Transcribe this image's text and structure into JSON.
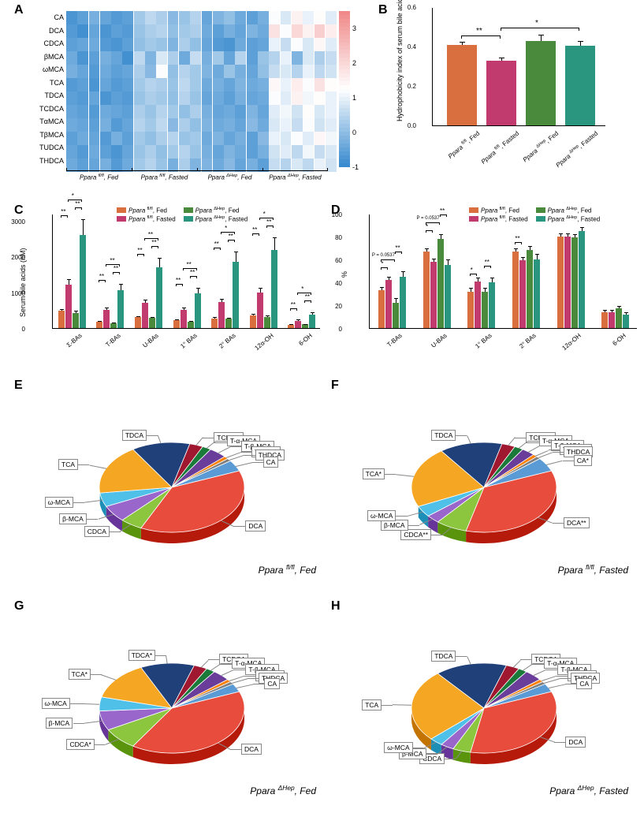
{
  "panels": {
    "A": "A",
    "B": "B",
    "C": "C",
    "D": "D",
    "E": "E",
    "F": "F",
    "G": "G",
    "H": "H"
  },
  "colors": {
    "group1": "#d96f3e",
    "group2": "#c13b6f",
    "group3": "#4a8a3d",
    "group4": "#2a9680",
    "heatmap_low": "#3a8bcf",
    "heatmap_mid": "#ffffff",
    "heatmap_high": "#f08a8a"
  },
  "groupLabels": {
    "g1": "Ppara fl/fl, Fed",
    "g2": "Ppara fl/fl, Fasted",
    "g3": "Ppara ΔHep, Fed",
    "g4": "Ppara ΔHep, Fasted"
  },
  "panelA": {
    "rows": [
      "CA",
      "DCA",
      "CDCA",
      "βMCA",
      "ωMCA",
      "TCA",
      "TDCA",
      "TCDCA",
      "TαMCA",
      "TβMCA",
      "TUDCA",
      "THDCA"
    ],
    "group_xlabels": [
      "Ppara fl/fl, Fed",
      "Ppara fl/fl, Fasted",
      "Ppara ΔHep, Fed",
      "Ppara ΔHep, Fasted"
    ],
    "colorbar_ticks": [
      3.0,
      2.0,
      1.0,
      0.0,
      -1.0
    ],
    "colorbar_range": [
      -1,
      3.5
    ],
    "data": [
      [
        -0.8,
        -0.6,
        -0.3,
        -0.5,
        -0.7,
        -0.6,
        0.2,
        0.5,
        0.3,
        -0.1,
        0.1,
        0.4,
        -0.5,
        -0.2,
        0.0,
        -0.4,
        -0.6,
        -0.3,
        1.2,
        0.8,
        1.5,
        1.0,
        1.3,
        0.9
      ],
      [
        -0.7,
        -0.9,
        -0.5,
        -0.8,
        -0.6,
        -0.7,
        0.1,
        0.3,
        0.4,
        0.0,
        0.2,
        0.3,
        -0.4,
        -0.6,
        -0.3,
        -0.5,
        -0.2,
        -0.4,
        1.8,
        1.2,
        2.0,
        1.5,
        2.2,
        1.6
      ],
      [
        -0.6,
        -0.5,
        -0.4,
        -0.7,
        -0.8,
        -0.6,
        0.0,
        0.2,
        0.1,
        -0.2,
        0.3,
        0.0,
        -0.5,
        -0.7,
        -0.8,
        -0.4,
        -0.6,
        -0.5,
        1.0,
        0.6,
        1.2,
        0.8,
        1.4,
        0.9
      ],
      [
        -0.4,
        -0.8,
        -0.6,
        -0.3,
        -0.5,
        -0.9,
        0.5,
        -0.2,
        0.8,
        0.3,
        -0.4,
        0.6,
        -0.3,
        0.2,
        -0.5,
        0.4,
        -0.6,
        0.1,
        0.4,
        1.0,
        -0.2,
        0.8,
        0.3,
        0.6
      ],
      [
        -0.3,
        -0.5,
        -0.7,
        -0.4,
        -0.6,
        -0.5,
        0.3,
        -0.1,
        1.2,
        0.0,
        0.4,
        0.2,
        -0.2,
        -0.4,
        0.1,
        -0.3,
        -0.5,
        0.0,
        0.6,
        0.8,
        0.4,
        1.0,
        0.5,
        0.7
      ],
      [
        -0.7,
        -0.6,
        -0.8,
        -0.5,
        -0.7,
        -0.6,
        0.2,
        0.4,
        0.3,
        0.1,
        0.5,
        0.2,
        -0.4,
        -0.3,
        -0.5,
        -0.2,
        -0.4,
        -0.3,
        1.4,
        1.0,
        1.6,
        1.2,
        1.8,
        1.3
      ],
      [
        -0.6,
        -0.7,
        -0.5,
        -0.8,
        -0.6,
        -0.7,
        0.1,
        0.3,
        0.2,
        0.0,
        0.4,
        0.1,
        -0.5,
        -0.4,
        -0.6,
        -0.3,
        -0.5,
        -0.4,
        1.2,
        0.9,
        1.5,
        1.1,
        1.3,
        1.0
      ],
      [
        -0.5,
        -0.6,
        -0.7,
        -0.4,
        -0.5,
        -0.6,
        0.3,
        0.1,
        0.4,
        0.2,
        0.0,
        0.3,
        -0.3,
        -0.5,
        -0.4,
        -0.6,
        -0.2,
        -0.5,
        0.9,
        1.1,
        0.7,
        1.3,
        0.8,
        1.0
      ],
      [
        -0.4,
        -0.5,
        -0.6,
        -0.3,
        -0.7,
        -0.5,
        0.4,
        0.2,
        0.5,
        -0.1,
        0.3,
        0.0,
        -0.2,
        -0.4,
        -0.3,
        -0.5,
        -0.1,
        -0.4,
        0.8,
        1.0,
        0.6,
        1.2,
        0.7,
        0.9
      ],
      [
        -0.6,
        -0.4,
        -0.5,
        -0.7,
        -0.3,
        -0.6,
        0.2,
        0.0,
        0.3,
        0.4,
        0.1,
        0.2,
        -0.4,
        -0.2,
        -0.5,
        -0.3,
        -0.6,
        -0.1,
        1.0,
        0.8,
        1.2,
        0.9,
        1.4,
        1.1
      ],
      [
        -0.5,
        -0.7,
        -0.4,
        -0.6,
        -0.8,
        -0.5,
        0.1,
        0.3,
        0.0,
        0.2,
        0.4,
        0.1,
        -0.3,
        -0.5,
        -0.2,
        -0.4,
        -0.6,
        -0.3,
        0.7,
        0.9,
        0.5,
        1.1,
        0.6,
        0.8
      ],
      [
        -0.4,
        -0.6,
        -0.5,
        -0.3,
        -0.7,
        -0.4,
        0.2,
        0.4,
        0.1,
        -0.3,
        0.3,
        -0.2,
        -0.2,
        -0.4,
        -0.1,
        -0.5,
        -0.3,
        -0.6,
        0.6,
        0.4,
        0.8,
        0.5,
        1.0,
        0.7
      ]
    ]
  },
  "panelB": {
    "ylabel": "Hydrophobicity index of serum bile acids",
    "ymax": 0.6,
    "yticks": [
      0.0,
      0.2,
      0.4,
      0.6
    ],
    "bars": [
      {
        "label": "Ppara fl/fl, Fed",
        "value": 0.41,
        "err": 0.015,
        "color": "#d96f3e"
      },
      {
        "label": "Ppara fl/fl, Fasted",
        "value": 0.33,
        "err": 0.015,
        "color": "#c13b6f"
      },
      {
        "label": "Ppara ΔHep, Fed",
        "value": 0.43,
        "err": 0.03,
        "color": "#4a8a3d"
      },
      {
        "label": "Ppara ΔHep, Fasted",
        "value": 0.405,
        "err": 0.025,
        "color": "#2a9680"
      }
    ],
    "sig": [
      {
        "from": 0,
        "to": 1,
        "label": "**"
      },
      {
        "from": 1,
        "to": 3,
        "label": "*"
      }
    ]
  },
  "panelC": {
    "ylabel": "Serum bile acids (nM)",
    "ymax": 3200,
    "yticks": [
      0,
      1000,
      2000,
      3000
    ],
    "categories": [
      "Σ-BAs",
      "T-BAs",
      "U-BAs",
      "1° BAs",
      "2° BAs",
      "12α-OH",
      "6-OH"
    ],
    "series": [
      {
        "name": "g1",
        "color": "#d96f3e",
        "values": [
          480,
          170,
          300,
          210,
          270,
          360,
          95
        ],
        "err": [
          60,
          30,
          40,
          30,
          35,
          45,
          18
        ]
      },
      {
        "name": "g2",
        "color": "#c13b6f",
        "values": [
          1220,
          510,
          700,
          500,
          720,
          1000,
          200
        ],
        "err": [
          150,
          70,
          90,
          65,
          90,
          120,
          35
        ]
      },
      {
        "name": "g3",
        "color": "#4a8a3d",
        "values": [
          430,
          130,
          280,
          170,
          260,
          310,
          100
        ],
        "err": [
          55,
          25,
          40,
          28,
          35,
          42,
          18
        ]
      },
      {
        "name": "g4",
        "color": "#2a9680",
        "values": [
          2600,
          1050,
          1700,
          980,
          1850,
          2180,
          380
        ],
        "err": [
          450,
          180,
          260,
          150,
          300,
          350,
          60
        ]
      }
    ],
    "sig": [
      {
        "cat": 0,
        "pairs": [
          [
            0,
            1,
            "**"
          ],
          [
            2,
            3,
            "**"
          ],
          [
            1,
            3,
            "*"
          ]
        ]
      },
      {
        "cat": 1,
        "pairs": [
          [
            0,
            1,
            "**"
          ],
          [
            2,
            3,
            "**"
          ],
          [
            1,
            3,
            "**"
          ]
        ]
      },
      {
        "cat": 2,
        "pairs": [
          [
            0,
            1,
            "**"
          ],
          [
            2,
            3,
            "**"
          ],
          [
            1,
            3,
            "**"
          ]
        ]
      },
      {
        "cat": 3,
        "pairs": [
          [
            0,
            1,
            "**"
          ],
          [
            2,
            3,
            "**"
          ],
          [
            1,
            3,
            "**"
          ]
        ]
      },
      {
        "cat": 4,
        "pairs": [
          [
            0,
            1,
            "**"
          ],
          [
            2,
            3,
            "**"
          ],
          [
            1,
            3,
            "*"
          ]
        ]
      },
      {
        "cat": 5,
        "pairs": [
          [
            0,
            1,
            "**"
          ],
          [
            2,
            3,
            "**"
          ],
          [
            1,
            3,
            "*"
          ]
        ]
      },
      {
        "cat": 6,
        "pairs": [
          [
            0,
            1,
            "**"
          ],
          [
            2,
            3,
            "**"
          ],
          [
            1,
            3,
            "*"
          ]
        ]
      }
    ]
  },
  "panelD": {
    "ylabel": "%",
    "ymax": 100,
    "yticks": [
      0,
      20,
      40,
      60,
      80,
      100
    ],
    "categories": [
      "T-BAs",
      "U-BAs",
      "1° BAs",
      "2° BAs",
      "12α-OH",
      "6-OH"
    ],
    "series": [
      {
        "name": "g1",
        "color": "#d96f3e",
        "values": [
          33,
          67,
          32,
          67,
          80,
          14
        ],
        "err": [
          3,
          3,
          3,
          3,
          3,
          2
        ]
      },
      {
        "name": "g2",
        "color": "#c13b6f",
        "values": [
          42,
          58,
          41,
          59,
          80,
          14
        ],
        "err": [
          3,
          3,
          3,
          3,
          3,
          2
        ]
      },
      {
        "name": "g3",
        "color": "#4a8a3d",
        "values": [
          22,
          78,
          32,
          68,
          79,
          17
        ],
        "err": [
          4,
          4,
          3,
          4,
          3,
          2
        ]
      },
      {
        "name": "g4",
        "color": "#2a9680",
        "values": [
          45,
          55,
          40,
          60,
          85,
          12
        ],
        "err": [
          5,
          5,
          4,
          5,
          3,
          2
        ]
      }
    ],
    "sig": [
      {
        "cat": 0,
        "pairs": [
          [
            0,
            1,
            "*"
          ],
          [
            0,
            2,
            "P = 0.0537"
          ],
          [
            2,
            3,
            "**"
          ]
        ]
      },
      {
        "cat": 1,
        "pairs": [
          [
            0,
            1,
            "*"
          ],
          [
            0,
            2,
            "P = 0.0537"
          ],
          [
            2,
            3,
            "**"
          ]
        ]
      },
      {
        "cat": 2,
        "pairs": [
          [
            0,
            1,
            "*"
          ],
          [
            2,
            3,
            "**"
          ]
        ]
      },
      {
        "cat": 3,
        "pairs": [
          [
            0,
            1,
            "**"
          ]
        ]
      },
      {
        "cat": 4,
        "pairs": []
      },
      {
        "cat": 5,
        "pairs": []
      }
    ]
  },
  "pieColors": {
    "DCA": "#e84c3d",
    "CDCA": "#8cc63f",
    "β-MCA": "#9966cc",
    "ω-MCA": "#4fc1e9",
    "TCA": "#f5a623",
    "TDCA": "#20407a",
    "TCDCA": "#a01830",
    "T-α-MCA": "#1a7a3a",
    "T-β-MCA": "#6a3d9a",
    "TUDCA": "#ff7f00",
    "THDCA": "#808080",
    "CA": "#5b9bd5"
  },
  "pies": {
    "E": {
      "title": "Ppara fl/fl, Fed",
      "slices": [
        {
          "k": "DCA",
          "v": 38
        },
        {
          "k": "CDCA",
          "v": 5
        },
        {
          "k": "β-MCA",
          "v": 6
        },
        {
          "k": "ω-MCA",
          "v": 5
        },
        {
          "k": "TCA",
          "v": 18
        },
        {
          "k": "TDCA",
          "v": 13
        },
        {
          "k": "TCDCA",
          "v": 3
        },
        {
          "k": "T-α-MCA",
          "v": 2
        },
        {
          "k": "T-β-MCA",
          "v": 4
        },
        {
          "k": "TUDCA",
          "v": 1
        },
        {
          "k": "THDCA",
          "v": 1
        },
        {
          "k": "CA",
          "v": 4
        }
      ]
    },
    "F": {
      "title": "Ppara fl/fl, Fasted",
      "slices": [
        {
          "k": "DCA**",
          "ck": "DCA",
          "v": 35
        },
        {
          "k": "CDCA**",
          "ck": "CDCA",
          "v": 7
        },
        {
          "k": "β-MCA",
          "v": 3
        },
        {
          "k": "ω-MCA",
          "v": 4
        },
        {
          "k": "TCA*",
          "ck": "TCA",
          "v": 22
        },
        {
          "k": "TDCA",
          "v": 14
        },
        {
          "k": "TCDCA",
          "v": 3
        },
        {
          "k": "T-α-MCA",
          "v": 2
        },
        {
          "k": "T-β-MCA",
          "v": 3
        },
        {
          "k": "TUDCA*",
          "ck": "TUDCA",
          "v": 1
        },
        {
          "k": "THDCA",
          "v": 1
        },
        {
          "k": "CA*",
          "ck": "CA",
          "v": 5
        }
      ]
    },
    "G": {
      "title": "Ppara ΔHep, Fed",
      "slices": [
        {
          "k": "DCA",
          "v": 40
        },
        {
          "k": "CDCA*",
          "ck": "CDCA",
          "v": 8
        },
        {
          "k": "β-MCA",
          "v": 7
        },
        {
          "k": "ω-MCA",
          "v": 5
        },
        {
          "k": "TCA*",
          "ck": "TCA",
          "v": 14
        },
        {
          "k": "TDCA*",
          "ck": "TDCA",
          "v": 12
        },
        {
          "k": "TCDCA",
          "v": 3
        },
        {
          "k": "T-α-MCA",
          "v": 2
        },
        {
          "k": "T-β-MCA",
          "v": 4
        },
        {
          "k": "TUDCA",
          "v": 1
        },
        {
          "k": "THDCA",
          "v": 1
        },
        {
          "k": "CA",
          "v": 3
        }
      ]
    },
    "H": {
      "title": "Ppara ΔHep, Fasted",
      "slices": [
        {
          "k": "DCA",
          "v": 34
        },
        {
          "k": "CDCA",
          "v": 4
        },
        {
          "k": "β-MCA",
          "v": 3
        },
        {
          "k": "ω-MCA",
          "v": 3
        },
        {
          "k": "TCA",
          "v": 26
        },
        {
          "k": "TDCA",
          "v": 16
        },
        {
          "k": "TCDCA",
          "v": 3
        },
        {
          "k": "T-α-MCA",
          "v": 2
        },
        {
          "k": "T-β-MCA",
          "v": 4
        },
        {
          "k": "TUDCA",
          "v": 1
        },
        {
          "k": "THDCA",
          "v": 1
        },
        {
          "k": "CA",
          "v": 3
        }
      ]
    }
  }
}
